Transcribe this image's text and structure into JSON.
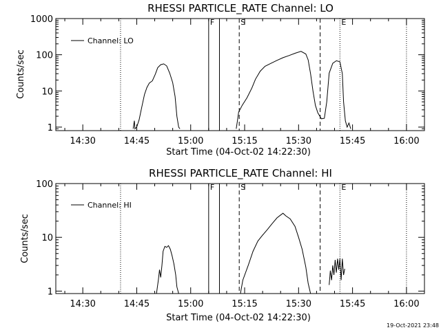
{
  "colors": {
    "background": "#ffffff",
    "foreground": "#000000"
  },
  "footer": {
    "timestamp": "19-Oct-2021 23:48"
  },
  "chart_data": [
    {
      "type": "line",
      "title": "RHESSI PARTICLE_RATE Channel: LO",
      "xlabel": "Start Time (04-Oct-02 14:22:30)",
      "ylabel": "Counts/sec",
      "yscale": "log",
      "xlim": [
        "14:22:30",
        "16:05:00"
      ],
      "ylim": [
        0.8,
        1000
      ],
      "xticks": [
        "14:30",
        "14:45",
        "15:00",
        "15:15",
        "15:30",
        "15:45",
        "16:00"
      ],
      "yticks": [
        "1",
        "10",
        "100",
        "1000"
      ],
      "legend": {
        "placement": "top-left",
        "entries": [
          "Channel: LO"
        ]
      },
      "markers": [
        {
          "time": "14:40:30",
          "style": "dotted",
          "label": ""
        },
        {
          "time": "15:05:00",
          "style": "solid",
          "label": "F"
        },
        {
          "time": "15:08:00",
          "style": "solid",
          "label": ""
        },
        {
          "time": "15:13:30",
          "style": "dashed",
          "label": "S"
        },
        {
          "time": "15:36:00",
          "style": "dashed",
          "label": ""
        },
        {
          "time": "15:41:30",
          "style": "dotted",
          "label": "E"
        },
        {
          "time": "16:00:00",
          "style": "dotted",
          "label": ""
        }
      ],
      "series": [
        {
          "name": "Channel: LO",
          "segments": [
            {
              "x": [
                "14:44:00",
                "14:44:20",
                "14:44:30",
                "14:45:00",
                "14:45:40",
                "14:46:30",
                "14:47:10",
                "14:47:50",
                "14:48:30",
                "14:49:20",
                "14:50:10",
                "14:50:50",
                "14:51:40",
                "14:52:30",
                "14:53:20",
                "14:54:10",
                "14:55:00",
                "14:55:40",
                "14:56:10",
                "14:56:40",
                "14:57:00"
              ],
              "y": [
                0.9,
                1.5,
                0.9,
                1.0,
                1.6,
                4.0,
                8.0,
                12.5,
                16.5,
                19.0,
                29.0,
                44.0,
                53.0,
                56.0,
                49.0,
                31.0,
                17.0,
                7.0,
                2.0,
                1.0,
                0.9
              ]
            },
            {
              "x": [
                "15:12:40",
                "15:13:00",
                "15:13:20",
                "15:14:20",
                "15:15:40",
                "15:17:00",
                "15:18:00",
                "15:19:20",
                "15:20:40",
                "15:22:20",
                "15:24:00",
                "15:25:40",
                "15:27:20",
                "15:29:00",
                "15:30:40",
                "15:32:00",
                "15:32:40",
                "15:33:20",
                "15:34:00",
                "15:34:40",
                "15:35:20",
                "15:36:20",
                "15:37:10",
                "15:37:50",
                "15:38:30",
                "15:39:30",
                "15:40:30",
                "15:41:30",
                "15:42:10",
                "15:42:30",
                "15:43:00",
                "15:43:30",
                "15:44:00",
                "15:44:30"
              ],
              "y": [
                0.9,
                1.5,
                2.6,
                4.0,
                6.5,
                12.0,
                21.0,
                35.0,
                48.0,
                58.0,
                70.0,
                83.0,
                95.0,
                110.0,
                124.0,
                105.0,
                72.0,
                30.0,
                10.0,
                4.0,
                2.5,
                1.7,
                1.75,
                5.0,
                31.0,
                58.0,
                68.0,
                64.0,
                30.0,
                5.0,
                1.5,
                1.0,
                1.3,
                0.9
              ]
            }
          ]
        }
      ]
    },
    {
      "type": "line",
      "title": "RHESSI PARTICLE_RATE Channel: HI",
      "xlabel": "Start Time (04-Oct-02 14:22:30)",
      "ylabel": "Counts/sec",
      "yscale": "log",
      "xlim": [
        "14:22:30",
        "16:05:00"
      ],
      "ylim": [
        0.9,
        100
      ],
      "xticks": [
        "14:30",
        "14:45",
        "15:00",
        "15:15",
        "15:30",
        "15:45",
        "16:00"
      ],
      "yticks": [
        "1",
        "10",
        "100"
      ],
      "legend": {
        "placement": "top-left",
        "entries": [
          "Channel: HI"
        ]
      },
      "markers": [
        {
          "time": "14:40:30",
          "style": "dotted",
          "label": ""
        },
        {
          "time": "15:05:00",
          "style": "solid",
          "label": "F"
        },
        {
          "time": "15:08:00",
          "style": "solid",
          "label": ""
        },
        {
          "time": "15:13:30",
          "style": "dashed",
          "label": "S"
        },
        {
          "time": "15:36:00",
          "style": "dashed",
          "label": ""
        },
        {
          "time": "15:41:30",
          "style": "dotted",
          "label": "E"
        },
        {
          "time": "16:00:00",
          "style": "dotted",
          "label": ""
        }
      ],
      "series": [
        {
          "name": "Channel: HI",
          "segments": [
            {
              "x": [
                "14:50:30",
                "14:51:00",
                "14:51:20",
                "14:51:40",
                "14:52:00",
                "14:52:20",
                "14:52:50",
                "14:53:20",
                "14:53:50",
                "14:54:20",
                "14:54:50",
                "14:55:20",
                "14:55:50",
                "14:56:10",
                "14:56:40"
              ],
              "y": [
                0.9,
                1.6,
                2.5,
                1.8,
                3.0,
                5.5,
                6.8,
                6.5,
                7.0,
                6.0,
                4.5,
                3.2,
                2.0,
                1.2,
                0.9
              ]
            },
            {
              "x": [
                "15:13:50",
                "15:14:30",
                "15:16:00",
                "15:17:20",
                "15:18:40",
                "15:20:00",
                "15:21:20",
                "15:22:40",
                "15:24:00",
                "15:25:00",
                "15:25:40",
                "15:26:30",
                "15:27:40",
                "15:29:00",
                "15:30:00",
                "15:31:00",
                "15:32:00",
                "15:32:40",
                "15:33:20"
              ],
              "y": [
                0.9,
                1.6,
                3.0,
                5.5,
                8.5,
                11.0,
                14.0,
                18.0,
                23.0,
                26.0,
                28.0,
                25.0,
                22.0,
                16.0,
                10.0,
                6.0,
                2.8,
                1.4,
                0.9
              ]
            },
            {
              "x": [
                "15:38:30",
                "15:38:50",
                "15:39:10",
                "15:39:30",
                "15:39:50",
                "15:40:10",
                "15:40:30",
                "15:40:50",
                "15:41:10",
                "15:41:30",
                "15:41:50",
                "15:42:10",
                "15:42:30",
                "15:42:50"
              ],
              "y": [
                1.3,
                2.4,
                1.6,
                3.0,
                2.0,
                3.8,
                2.2,
                4.0,
                2.5,
                4.0,
                1.6,
                4.0,
                2.0,
                2.6
              ]
            }
          ]
        }
      ]
    }
  ]
}
